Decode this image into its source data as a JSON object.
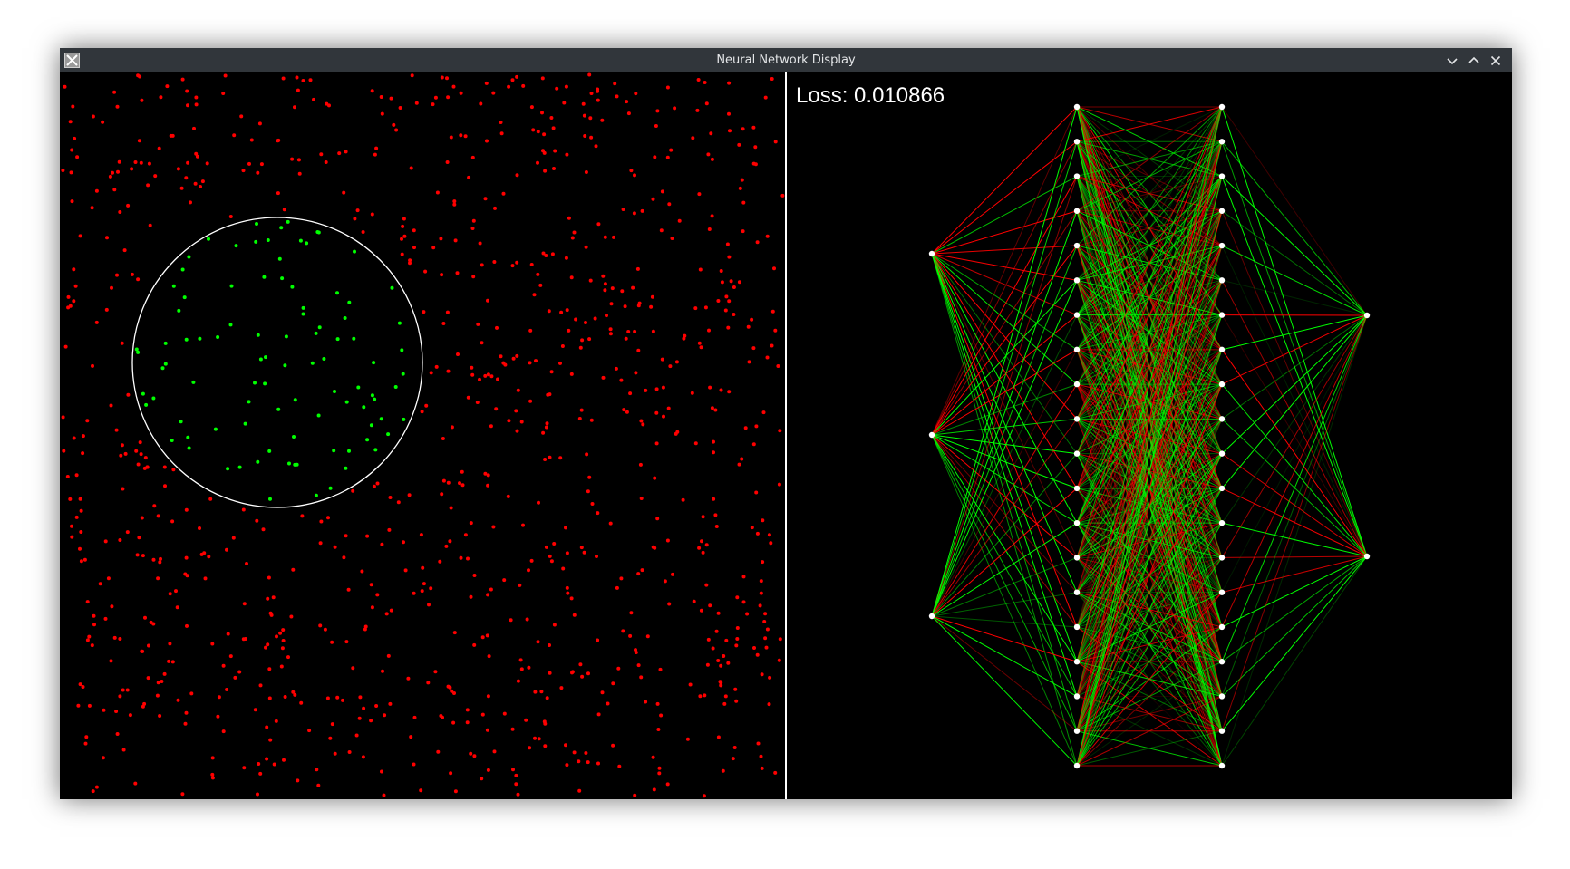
{
  "window": {
    "title": "Neural Network Display",
    "app_icon": "x11-icon",
    "controls": [
      "minimize-icon",
      "maximize-icon",
      "close-icon"
    ]
  },
  "colors": {
    "titlebar": "#31363b",
    "background": "#000000",
    "outside_point": "#ff0000",
    "inside_point": "#00ff00",
    "positive_weight": "#00ff00",
    "negative_weight": "#ff0000",
    "neuron": "#ffffff"
  },
  "loss_display": {
    "label": "Loss:",
    "value": "0.010866"
  },
  "scatter": {
    "circle_color": "#ffffff",
    "point_classes": [
      "outside",
      "inside"
    ]
  },
  "network": {
    "layers": [
      3,
      20,
      20,
      2
    ]
  }
}
